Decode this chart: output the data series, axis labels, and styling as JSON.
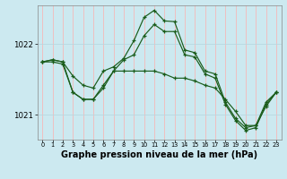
{
  "bg_color": "#cce9f0",
  "vgrid_color": "#f5b8b8",
  "hgrid_color": "#b8d8e0",
  "line_color": "#1a5c1a",
  "xlabel": "Graphe pression niveau de la mer (hPa)",
  "xlabel_fontsize": 7.0,
  "xlim": [
    -0.5,
    23.5
  ],
  "ylim": [
    1020.65,
    1022.55
  ],
  "yticks": [
    1021,
    1022
  ],
  "xticks": [
    0,
    1,
    2,
    3,
    4,
    5,
    6,
    7,
    8,
    9,
    10,
    11,
    12,
    13,
    14,
    15,
    16,
    17,
    18,
    19,
    20,
    21,
    22,
    23
  ],
  "series": [
    {
      "x": [
        0,
        1,
        2,
        3,
        4,
        5,
        6,
        7,
        8,
        9,
        10,
        11,
        12,
        13,
        14,
        15,
        16,
        17,
        18,
        19,
        20,
        21,
        22,
        23
      ],
      "y": [
        1021.75,
        1021.78,
        1021.75,
        1021.55,
        1021.42,
        1021.38,
        1021.62,
        1021.68,
        1021.8,
        1022.05,
        1022.38,
        1022.48,
        1022.33,
        1022.32,
        1021.92,
        1021.88,
        1021.62,
        1021.58,
        1021.18,
        1020.95,
        1020.82,
        1020.85,
        1021.18,
        1021.32
      ]
    },
    {
      "x": [
        0,
        1,
        2,
        3,
        4,
        5,
        6,
        7,
        8,
        9,
        10,
        11,
        12,
        13,
        14,
        15,
        16,
        17,
        18,
        19,
        20,
        21,
        22,
        23
      ],
      "y": [
        1021.75,
        1021.78,
        1021.75,
        1021.32,
        1021.22,
        1021.22,
        1021.38,
        1021.62,
        1021.78,
        1021.85,
        1022.12,
        1022.28,
        1022.18,
        1022.18,
        1021.85,
        1021.82,
        1021.58,
        1021.52,
        1021.15,
        1020.92,
        1020.78,
        1020.82,
        1021.15,
        1021.32
      ]
    },
    {
      "x": [
        0,
        1,
        2,
        3,
        4,
        5,
        6,
        7,
        8,
        9,
        10,
        11,
        12,
        13,
        14,
        15,
        16,
        17,
        18,
        19,
        20,
        21,
        22,
        23
      ],
      "y": [
        1021.75,
        1021.75,
        1021.72,
        1021.32,
        1021.22,
        1021.22,
        1021.42,
        1021.62,
        1021.62,
        1021.62,
        1021.62,
        1021.62,
        1021.58,
        1021.52,
        1021.52,
        1021.48,
        1021.42,
        1021.38,
        1021.22,
        1021.05,
        1020.85,
        1020.85,
        1021.12,
        1021.32
      ]
    }
  ]
}
